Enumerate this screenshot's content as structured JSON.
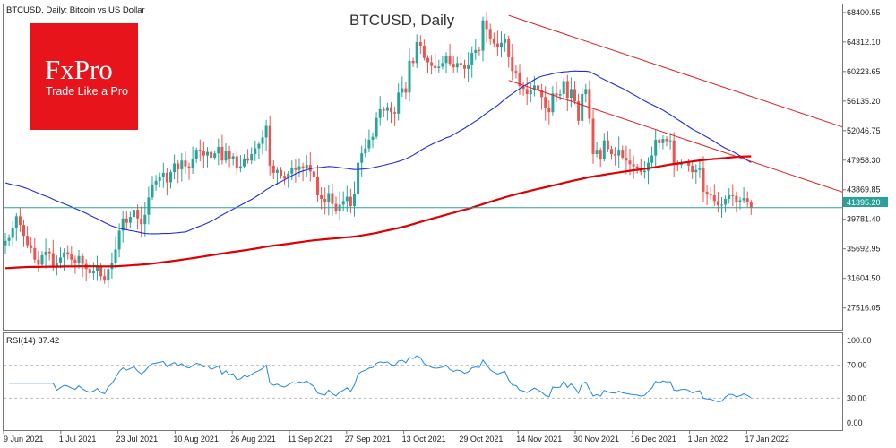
{
  "header": {
    "symbol_line": "BTCUSD, Daily:  Bitcoin vs US Dollar",
    "chart_title": "BTCUSD, Daily"
  },
  "logo": {
    "brand": "FxPro",
    "tagline": "Trade Like a Pro",
    "color": "#e8141b"
  },
  "rsi_panel": {
    "label": "RSI(14) 37.42",
    "levels": [
      70,
      30
    ],
    "axis_labels": [
      "100.00",
      "70.00",
      "30.00",
      "0.00"
    ]
  },
  "current_price_label": "41395.20",
  "colors": {
    "bull_candle": "#26a69a",
    "bear_candle": "#ef5350",
    "ma_long": "#dd0000",
    "ma_short": "#1f2ed6",
    "channel": "#e02020",
    "price_line": "#2aa198",
    "rsi_line": "#1e88e5"
  },
  "chart_data": {
    "type": "candlestick",
    "title": "BTCUSD, Daily",
    "y_axis_labels": [
      "68400.55",
      "64312.10",
      "60223.65",
      "56135.20",
      "52046.75",
      "47958.30",
      "43869.85",
      "39781.40",
      "35692.95",
      "31604.50",
      "27516.05"
    ],
    "ylim": [
      24500,
      69500
    ],
    "x_axis_labels": [
      "9 Jun 2021",
      "1 Jul 2021",
      "23 Jul 2021",
      "10 Aug 2021",
      "26 Aug 2021",
      "11 Sep 2021",
      "27 Sep 2021",
      "13 Oct 2021",
      "29 Oct 2021",
      "14 Nov 2021",
      "30 Nov 2021",
      "16 Dec 2021",
      "1 Jan 2022",
      "17 Jan 2022"
    ],
    "last_price": 41395.2,
    "close_series": [
      36800,
      37200,
      38500,
      40200,
      39000,
      37500,
      36200,
      35800,
      34200,
      33500,
      34800,
      35300,
      35100,
      33200,
      33800,
      34500,
      35200,
      34900,
      34200,
      33800,
      34700,
      33600,
      32900,
      32300,
      32600,
      33200,
      31900,
      31300,
      32900,
      33800,
      35600,
      38200,
      39900,
      39300,
      40100,
      41100,
      39900,
      39100,
      40400,
      42800,
      44600,
      45100,
      45600,
      46200,
      44900,
      46300,
      47500,
      46700,
      47900,
      47100,
      46800,
      48100,
      49400,
      49200,
      48600,
      49100,
      48300,
      48900,
      49800,
      47900,
      49200,
      48100,
      48500,
      46800,
      47100,
      48200,
      47900,
      48800,
      49600,
      50200,
      51100,
      52700,
      47200,
      46200,
      46600,
      45800,
      45400,
      46100,
      46900,
      46600,
      47100,
      46800,
      47300,
      46400,
      45600,
      43100,
      42600,
      42200,
      43400,
      41900,
      40900,
      41800,
      42300,
      42900,
      41600,
      43300,
      47600,
      48900,
      49600,
      50800,
      51200,
      53800,
      55000,
      54800,
      55300,
      54600,
      54400,
      57300,
      57900,
      57300,
      61700,
      61400,
      64300,
      63800,
      62100,
      61500,
      61000,
      60700,
      60900,
      61400,
      62400,
      61300,
      60800,
      61400,
      61200,
      60600,
      61200,
      62800,
      63200,
      63100,
      67300,
      66100,
      64800,
      64100,
      63600,
      64200,
      64700,
      62200,
      60300,
      60100,
      58200,
      57800,
      57100,
      57700,
      58300,
      57600,
      56700,
      55200,
      54600,
      57200,
      56900,
      57100,
      58900,
      56600,
      57800,
      56100,
      53400,
      57100,
      57800,
      53700,
      48800,
      49400,
      48100,
      50700,
      49500,
      48800,
      48600,
      49400,
      48300,
      47900,
      47400,
      47100,
      46900,
      46300,
      46500,
      47600,
      48600,
      50800,
      50300,
      50900,
      50600,
      50700,
      47500,
      47300,
      47600,
      47700,
      47200,
      46300,
      46600,
      46800,
      43600,
      43200,
      43100,
      42300,
      41700,
      41800,
      42600,
      43100,
      43000,
      42200,
      42400,
      42700,
      42200,
      41395
    ]
  }
}
